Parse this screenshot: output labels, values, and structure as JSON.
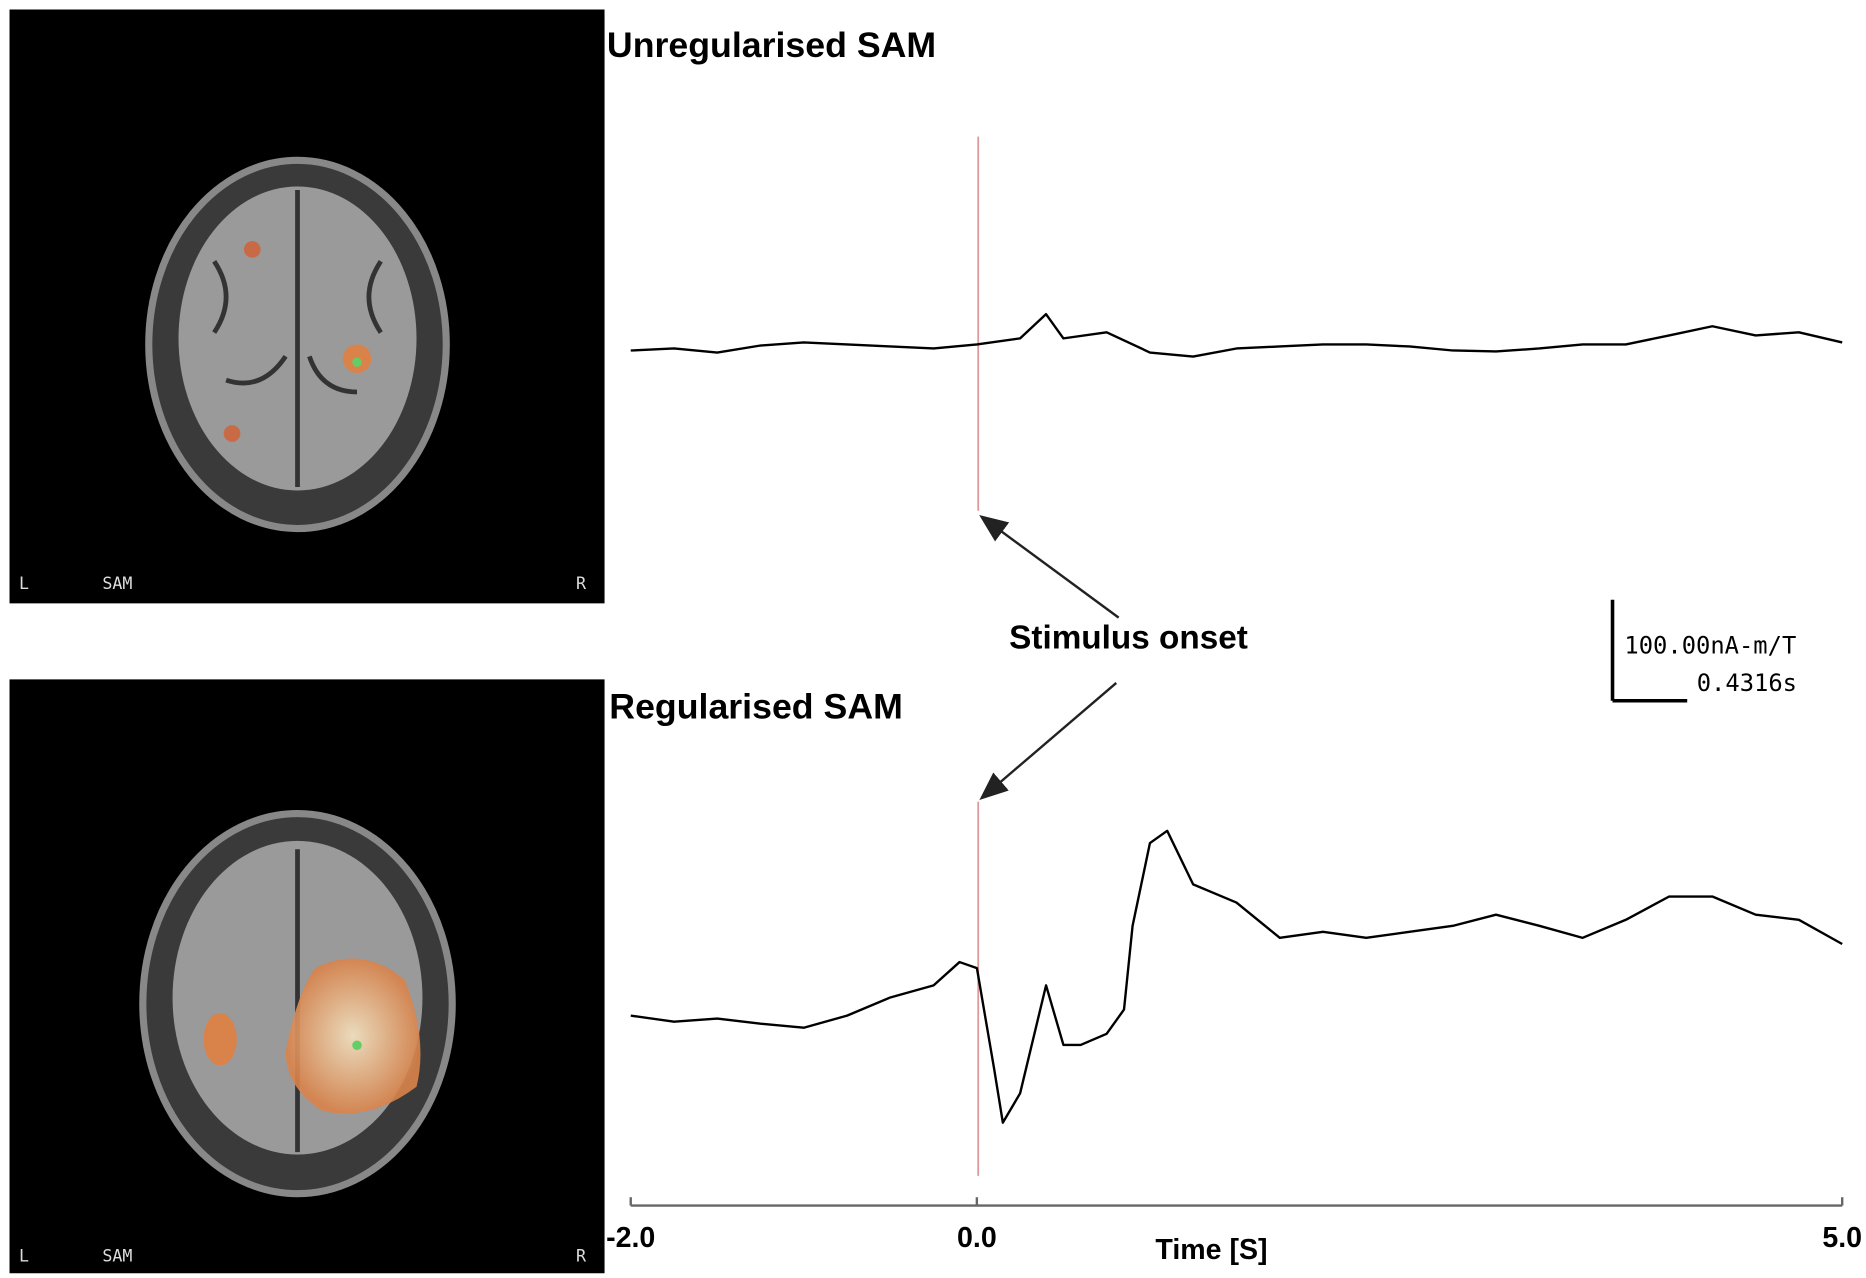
{
  "chart_data": [
    {
      "type": "line",
      "title": "Unregularised SAM",
      "x": [
        -2,
        -1.75,
        -1.5,
        -1.25,
        -1,
        -0.75,
        -0.5,
        -0.25,
        0,
        0.25,
        0.4,
        0.5,
        0.75,
        1,
        1.25,
        1.5,
        1.75,
        2,
        2.25,
        2.5,
        2.75,
        3,
        3.25,
        3.5,
        3.75,
        4,
        4.25,
        4.5,
        4.75,
        5
      ],
      "xlim": [
        -2,
        5
      ],
      "series": [
        {
          "color": "#000000",
          "values": [
            -6,
            -4,
            -8,
            -1,
            2,
            0,
            -2,
            -4,
            0,
            6,
            30,
            6,
            12,
            -8,
            -12,
            -4,
            -2,
            0,
            0,
            -2,
            -6,
            -7,
            -4,
            0,
            0,
            9,
            18,
            9,
            12,
            2
          ]
        }
      ]
    },
    {
      "type": "line",
      "title": "Regularised SAM",
      "x": [
        -2,
        -1.75,
        -1.5,
        -1.25,
        -1,
        -0.75,
        -0.5,
        -0.25,
        -0.1,
        0,
        0.1,
        0.15,
        0.25,
        0.4,
        0.5,
        0.6,
        0.75,
        0.85,
        0.9,
        1,
        1.1,
        1.25,
        1.5,
        1.75,
        2,
        2.25,
        2.5,
        2.75,
        3,
        3.25,
        3.5,
        3.75,
        4,
        4.25,
        4.5,
        4.75,
        5
      ],
      "xlim": [
        -2,
        5
      ],
      "xticks": [
        {
          "value": -2,
          "label": "-2.0"
        },
        {
          "value": 0,
          "label": "0.0"
        },
        {
          "value": 5,
          "label": "5.0"
        }
      ],
      "xlabel": "Time [S]",
      "series": [
        {
          "color": "#000000",
          "values": [
            -6,
            -12,
            -9,
            -14,
            -18,
            -6,
            12,
            24,
            47,
            41,
            -59,
            -112,
            -83,
            24,
            -35,
            -35,
            -24,
            0,
            83,
            165,
            177,
            124,
            106,
            71,
            77,
            71,
            77,
            83,
            94,
            83,
            71,
            89,
            112,
            112,
            94,
            89,
            65
          ]
        }
      ]
    }
  ],
  "annotation": "Stimulus onset",
  "scale_bar": {
    "amplitude": {
      "value": 100,
      "label": "100.00nA-m/T"
    },
    "time": {
      "value": 0.4316,
      "label": "0.4316s"
    }
  },
  "brain_images": [
    {
      "labels": [
        "L",
        "SAM",
        "R"
      ]
    },
    {
      "labels": [
        "L",
        "SAM",
        "R"
      ]
    }
  ]
}
